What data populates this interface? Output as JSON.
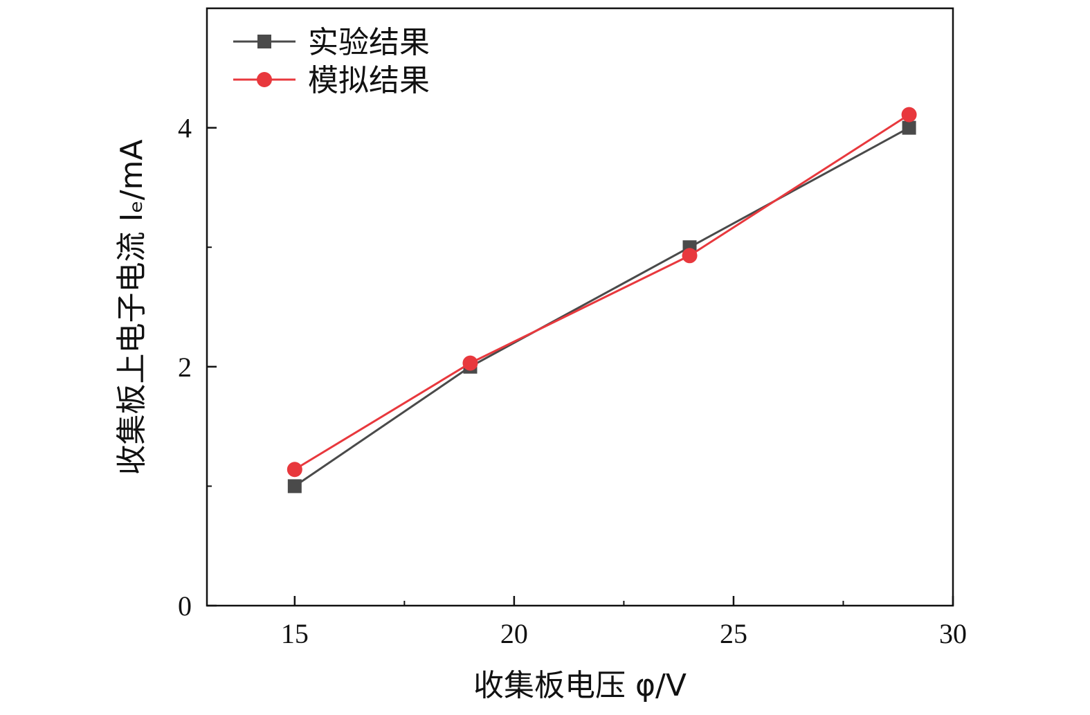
{
  "chart_data": {
    "type": "line",
    "xlabel": "收集板电压 φ/V",
    "ylabel": "收集板上电子电流 Iₑ/mA",
    "xlim": [
      13,
      30
    ],
    "ylim": [
      0,
      5
    ],
    "x_ticks": [
      "15",
      "20",
      "25",
      "30"
    ],
    "y_ticks": [
      "0",
      "2",
      "4"
    ],
    "grid": false,
    "legend_position": "top-left",
    "series": [
      {
        "name": "实验结果",
        "color": "#4a4a4a",
        "marker": "square",
        "x": [
          15,
          19,
          24,
          29
        ],
        "y": [
          1.0,
          2.0,
          3.0,
          4.0
        ]
      },
      {
        "name": "模拟结果",
        "color": "#e8383d",
        "marker": "circle",
        "x": [
          15,
          19,
          24,
          29
        ],
        "y": [
          1.14,
          2.03,
          2.93,
          4.11
        ]
      }
    ]
  }
}
